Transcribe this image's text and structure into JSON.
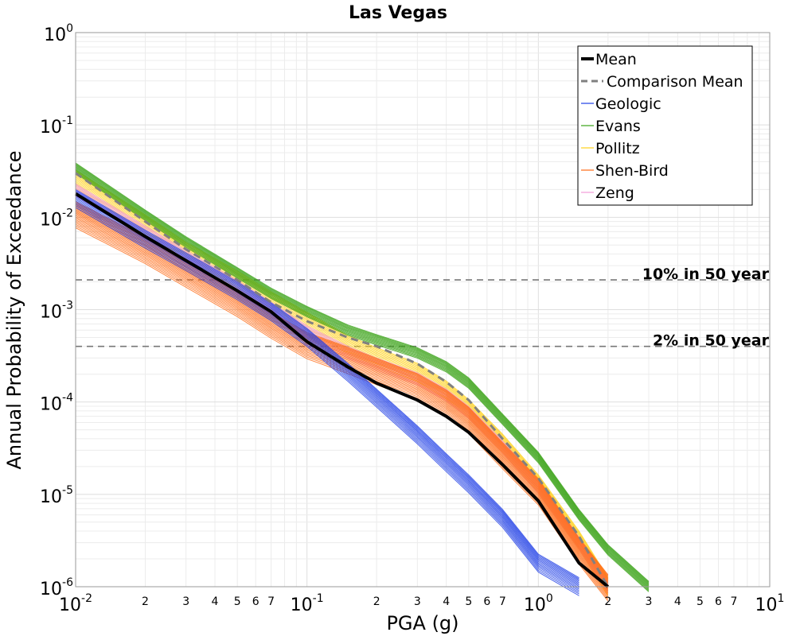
{
  "chart_data": {
    "type": "line",
    "title": "Las Vegas",
    "xlabel": "PGA (g)",
    "ylabel": "Annual Probability of Exceedance",
    "xscale": "log",
    "yscale": "log",
    "xlim": [
      0.01,
      10
    ],
    "ylim": [
      1e-06,
      1
    ],
    "grid": true,
    "legend_position": "top-right",
    "x_major_ticks": [
      {
        "value": 0.01,
        "base": "10",
        "exp": "-2"
      },
      {
        "value": 0.1,
        "base": "10",
        "exp": "-1"
      },
      {
        "value": 1,
        "base": "10",
        "exp": "0"
      },
      {
        "value": 10,
        "base": "10",
        "exp": "1"
      }
    ],
    "y_major_ticks": [
      {
        "value": 1,
        "base": "10",
        "exp": "0"
      },
      {
        "value": 0.1,
        "base": "10",
        "exp": "-1"
      },
      {
        "value": 0.01,
        "base": "10",
        "exp": "-2"
      },
      {
        "value": 0.001,
        "base": "10",
        "exp": "-3"
      },
      {
        "value": 0.0001,
        "base": "10",
        "exp": "-4"
      },
      {
        "value": 1e-05,
        "base": "10",
        "exp": "-5"
      },
      {
        "value": 1e-06,
        "base": "10",
        "exp": "-6"
      }
    ],
    "x_minor_tick_labels": [
      "2",
      "3",
      "4",
      "5",
      "6",
      "7"
    ],
    "reference_lines": [
      {
        "label": "10% in 50 year",
        "y": 0.0021
      },
      {
        "label": "2% in 50 year",
        "y": 0.0004
      }
    ],
    "x": [
      0.01,
      0.02,
      0.03,
      0.05,
      0.07,
      0.1,
      0.15,
      0.2,
      0.3,
      0.4,
      0.5,
      0.7,
      1.0,
      1.5,
      2.0,
      3.0
    ],
    "series": [
      {
        "name": "Mean",
        "color": "#000000",
        "style": "solid",
        "values": [
          0.018,
          0.0062,
          0.0034,
          0.0016,
          0.00095,
          0.00045,
          0.00024,
          0.00016,
          0.000105,
          7e-05,
          4.7e-05,
          2.1e-05,
          8.5e-06,
          1.8e-06,
          1e-06,
          null
        ]
      },
      {
        "name": "Comparison Mean",
        "color": "#808080",
        "style": "dashed",
        "values": [
          0.03,
          0.009,
          0.0045,
          0.0021,
          0.0012,
          0.00075,
          0.0005,
          0.0004,
          0.00026,
          0.000165,
          0.000105,
          4e-05,
          1.5e-05,
          3.5e-06,
          1e-06,
          null
        ]
      },
      {
        "name": "Geologic",
        "color": "#1f3fe6",
        "style": "solid",
        "values": [
          0.016,
          0.0058,
          0.0033,
          0.0016,
          0.00095,
          0.0005,
          0.00021,
          0.00011,
          4.4e-05,
          2.2e-05,
          1.3e-05,
          5.5e-06,
          1.8e-06,
          1e-06,
          null,
          null
        ]
      },
      {
        "name": "Evans",
        "color": "#3aa317",
        "style": "solid",
        "values": [
          0.034,
          0.0105,
          0.0054,
          0.0025,
          0.0015,
          0.00095,
          0.0006,
          0.00047,
          0.00034,
          0.00024,
          0.00016,
          6.5e-05,
          2.5e-05,
          6e-06,
          2.5e-06,
          1e-06
        ]
      },
      {
        "name": "Pollitz",
        "color": "#ffd11a",
        "style": "solid",
        "values": [
          0.026,
          0.0085,
          0.0043,
          0.0021,
          0.00125,
          0.00075,
          0.00042,
          0.00031,
          0.00021,
          0.000135,
          8.5e-05,
          3.6e-05,
          1.3e-05,
          3.2e-06,
          1e-06,
          null
        ]
      },
      {
        "name": "Shen-Bird",
        "color": "#ff6a14",
        "style": "solid",
        "values": [
          0.011,
          0.0045,
          0.0025,
          0.0012,
          0.0007,
          0.00042,
          0.00029,
          0.00022,
          0.00015,
          0.0001,
          6.5e-05,
          2.7e-05,
          1.1e-05,
          2.5e-06,
          1e-06,
          null
        ]
      },
      {
        "name": "Zeng",
        "color": "#f29bd9",
        "style": "solid",
        "values": [
          0.02,
          0.007,
          0.0038,
          0.0018,
          0.00105,
          0.00058,
          0.00035,
          0.00026,
          0.00018,
          0.00012,
          7.8e-05,
          3.3e-05,
          1.2e-05,
          3e-06,
          1e-06,
          null
        ]
      }
    ]
  }
}
